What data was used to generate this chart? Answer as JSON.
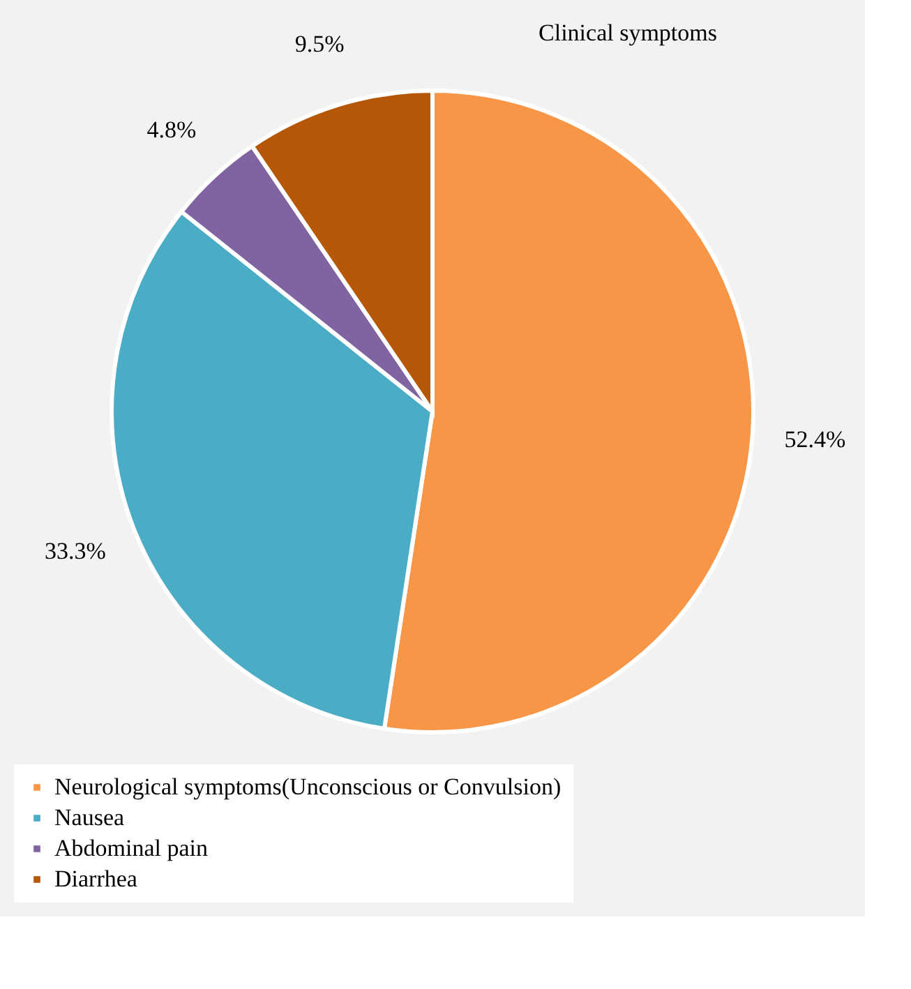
{
  "chart_data": {
    "type": "pie",
    "title": "Clinical symptoms",
    "categories": [
      "Neurological symptoms(Unconscious or Convulsion)",
      "Nausea",
      "Abdominal pain",
      "Diarrhea"
    ],
    "values": [
      52.4,
      33.3,
      4.8,
      9.5
    ],
    "colors": [
      "#f79646",
      "#4bacc6",
      "#8064a2",
      "#b65708"
    ],
    "value_labels": [
      "52.4%",
      "33.3%",
      "4.8%",
      "9.5%"
    ],
    "legend": "bottom"
  }
}
